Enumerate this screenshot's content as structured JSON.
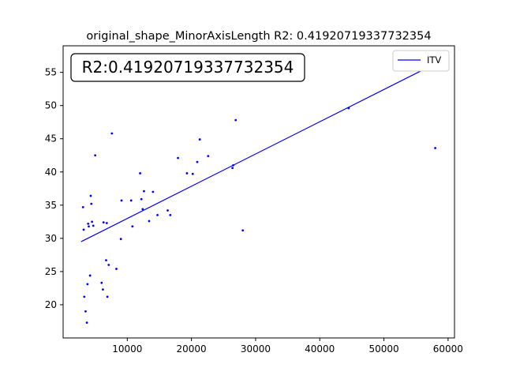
{
  "chart_data": {
    "type": "scatter",
    "title": "original_shape_MinorAxisLength R2: 0.41920719337732354",
    "xlabel": "",
    "ylabel": "",
    "xlim": [
      0,
      61000
    ],
    "ylim": [
      15,
      59
    ],
    "xticks": [
      10000,
      20000,
      30000,
      40000,
      50000,
      60000
    ],
    "xtick_labels": [
      "10000",
      "20000",
      "30000",
      "40000",
      "50000",
      "60000"
    ],
    "yticks": [
      20,
      25,
      30,
      35,
      40,
      45,
      50,
      55
    ],
    "ytick_labels": [
      "20",
      "25",
      "30",
      "35",
      "40",
      "45",
      "50",
      "55"
    ],
    "grid": false,
    "legend_position": "top-right",
    "annotation": "R2:0.41920719337732354",
    "colors": {
      "points": "#0000ff",
      "line": "#0000ff"
    },
    "series": [
      {
        "type": "scatter",
        "points": [
          [
            3100,
            34.7
          ],
          [
            3200,
            31.3
          ],
          [
            3300,
            21.2
          ],
          [
            3500,
            19.0
          ],
          [
            3700,
            17.3
          ],
          [
            3800,
            23.1
          ],
          [
            3900,
            32.2
          ],
          [
            4000,
            31.8
          ],
          [
            4200,
            24.4
          ],
          [
            4300,
            36.4
          ],
          [
            4400,
            35.2
          ],
          [
            4500,
            32.5
          ],
          [
            4700,
            31.9
          ],
          [
            5000,
            42.5
          ],
          [
            6000,
            23.3
          ],
          [
            6200,
            22.3
          ],
          [
            6300,
            32.4
          ],
          [
            6700,
            26.7
          ],
          [
            6800,
            32.3
          ],
          [
            6900,
            21.2
          ],
          [
            7100,
            26.0
          ],
          [
            7600,
            45.8
          ],
          [
            8300,
            25.4
          ],
          [
            9000,
            29.9
          ],
          [
            9100,
            35.7
          ],
          [
            10600,
            35.7
          ],
          [
            10800,
            31.8
          ],
          [
            12000,
            39.8
          ],
          [
            12200,
            35.9
          ],
          [
            12400,
            34.4
          ],
          [
            12600,
            37.1
          ],
          [
            13400,
            32.6
          ],
          [
            14000,
            37.0
          ],
          [
            14700,
            33.5
          ],
          [
            16300,
            34.2
          ],
          [
            16700,
            33.5
          ],
          [
            17900,
            42.1
          ],
          [
            19300,
            39.8
          ],
          [
            20200,
            39.7
          ],
          [
            20900,
            41.5
          ],
          [
            21300,
            44.9
          ],
          [
            22600,
            42.4
          ],
          [
            26400,
            40.6
          ],
          [
            26500,
            41.0
          ],
          [
            26900,
            47.8
          ],
          [
            28000,
            31.2
          ],
          [
            44500,
            49.6
          ],
          [
            58000,
            43.6
          ]
        ]
      },
      {
        "type": "line",
        "name": "ITV",
        "points": [
          [
            2800,
            29.5
          ],
          [
            58000,
            56.3
          ]
        ]
      }
    ]
  }
}
